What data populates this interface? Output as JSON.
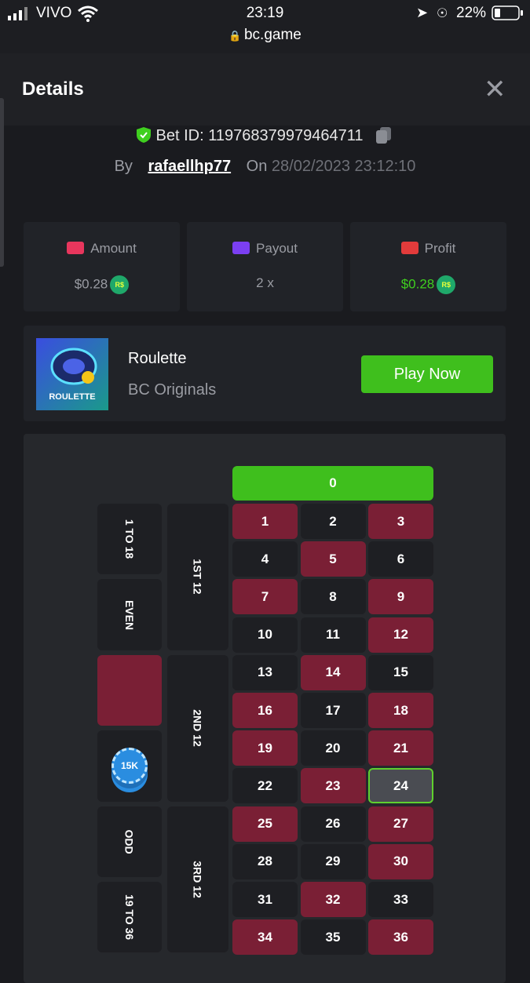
{
  "status_bar": {
    "carrier": "VIVO",
    "time": "23:19",
    "url": "bc.game",
    "battery": "22%"
  },
  "header": {
    "title": "Details"
  },
  "bet": {
    "id_label": "Bet ID:",
    "id": "119768379979464711",
    "by_label": "By",
    "user": "rafaellhp77",
    "on_label": "On",
    "date": "28/02/2023 23:12:10"
  },
  "stats": [
    {
      "label": "Amount",
      "value": "$0.28",
      "currency": "R$",
      "value_color": "#9a9ca3"
    },
    {
      "label": "Payout",
      "value": "2 x",
      "value_color": "#9a9ca3"
    },
    {
      "label": "Profit",
      "value": "$0.28",
      "currency": "R$",
      "value_color": "#3fcf1f"
    }
  ],
  "game": {
    "name": "Roulette",
    "provider": "BC Originals",
    "thumb_label": "ROULETTE",
    "button": "Play Now"
  },
  "table": {
    "zero": "0",
    "cells": [
      {
        "label": 1,
        "color": "red"
      },
      {
        "label": 2,
        "color": "black"
      },
      {
        "label": 3,
        "color": "red"
      },
      {
        "label": 4,
        "color": "black"
      },
      {
        "label": 5,
        "color": "red"
      },
      {
        "label": 6,
        "color": "black"
      },
      {
        "label": 7,
        "color": "red"
      },
      {
        "label": 8,
        "color": "black"
      },
      {
        "label": 9,
        "color": "red"
      },
      {
        "label": 10,
        "color": "black"
      },
      {
        "label": 11,
        "color": "black"
      },
      {
        "label": 12,
        "color": "red"
      },
      {
        "label": 13,
        "color": "black"
      },
      {
        "label": 14,
        "color": "red"
      },
      {
        "label": 15,
        "color": "black"
      },
      {
        "label": 16,
        "color": "red"
      },
      {
        "label": 17,
        "color": "black"
      },
      {
        "label": 18,
        "color": "red"
      },
      {
        "label": 19,
        "color": "red"
      },
      {
        "label": 20,
        "color": "black"
      },
      {
        "label": 21,
        "color": "red"
      },
      {
        "label": 22,
        "color": "black"
      },
      {
        "label": 23,
        "color": "red"
      },
      {
        "label": 24,
        "color": "black",
        "selected": true
      },
      {
        "label": 25,
        "color": "red"
      },
      {
        "label": 26,
        "color": "black"
      },
      {
        "label": 27,
        "color": "red"
      },
      {
        "label": 28,
        "color": "black"
      },
      {
        "label": 29,
        "color": "black"
      },
      {
        "label": 30,
        "color": "red"
      },
      {
        "label": 31,
        "color": "black"
      },
      {
        "label": 32,
        "color": "red"
      },
      {
        "label": 33,
        "color": "black"
      },
      {
        "label": 34,
        "color": "red"
      },
      {
        "label": 35,
        "color": "black"
      },
      {
        "label": 36,
        "color": "red"
      }
    ],
    "dozens": [
      "1ST 12",
      "2ND 12",
      "3RD 12"
    ],
    "sides": [
      "1 TO 18",
      "EVEN",
      "ODD",
      "19 TO 36"
    ],
    "chip": "15K"
  }
}
